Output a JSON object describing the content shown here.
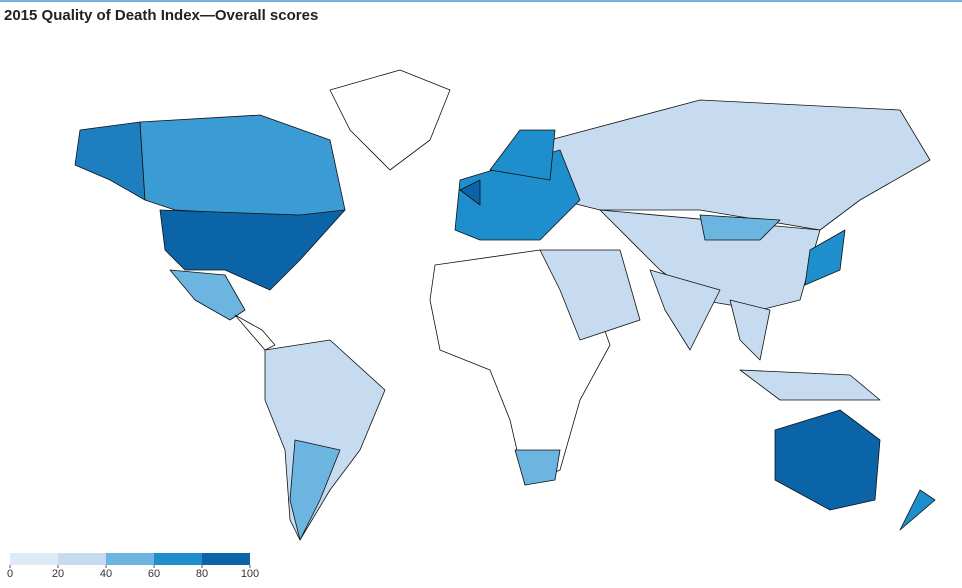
{
  "title": "2015 Quality of Death Index—Overall scores",
  "legend": {
    "ticks": [
      0,
      20,
      40,
      60,
      80,
      100
    ],
    "colors": [
      "#deebf7",
      "#c6dbef",
      "#6bb5e0",
      "#1e8fcc",
      "#0b64a8"
    ]
  }
}
